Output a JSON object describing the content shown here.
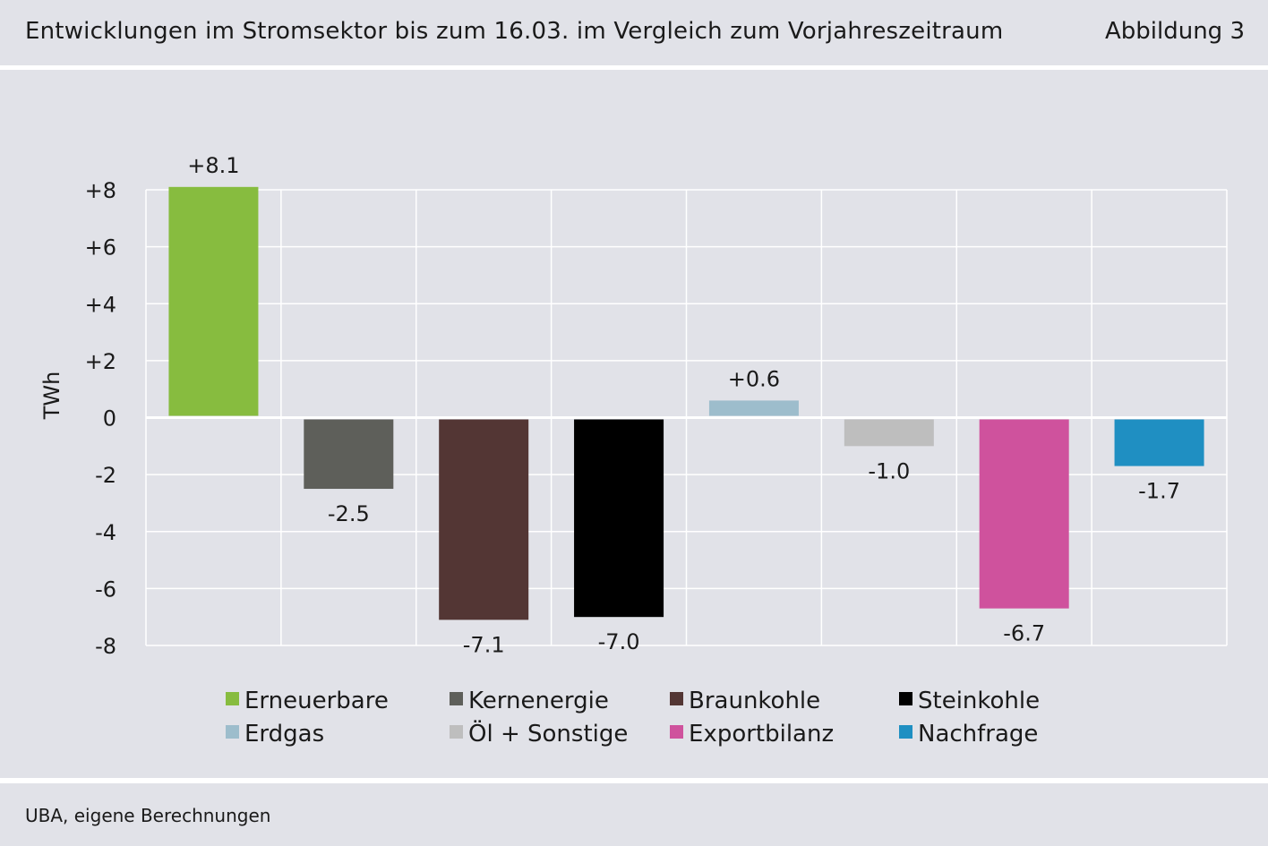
{
  "header": {
    "title": "Entwicklungen im Stromsektor bis zum 16.03. im Vergleich zum Vorjahreszeitraum",
    "figure_label": "Abbildung 3"
  },
  "footer": {
    "source": "UBA, eigene Berechnungen"
  },
  "chart_data": {
    "type": "bar",
    "title": "Entwicklungen im Stromsektor bis zum 16.03. im Vergleich zum Vorjahreszeitraum",
    "ylabel": "TWh",
    "xlabel": "",
    "ylim": [
      -8,
      8
    ],
    "yticks": [
      8,
      6,
      4,
      2,
      0,
      -2,
      -4,
      -6,
      -8
    ],
    "ytick_labels": [
      "+8",
      "+6",
      "+4",
      "+2",
      "0",
      "-2",
      "-4",
      "-6",
      "-8"
    ],
    "grid": true,
    "legend_position": "bottom",
    "categories": [
      "Erneuerbare",
      "Kernenergie",
      "Braunkohle",
      "Steinkohle",
      "Erdgas",
      "Öl + Sonstige",
      "Exportbilanz",
      "Nachfrage"
    ],
    "values": [
      8.1,
      -2.5,
      -7.1,
      -7.0,
      0.6,
      -1.0,
      -6.7,
      -1.7
    ],
    "data_labels": [
      "+8.1",
      "-2.5",
      "-7.1",
      "-7.0",
      "+0.6",
      "-1.0",
      "-6.7",
      "-1.7"
    ],
    "colors": [
      "#87bc3f",
      "#5e5f5a",
      "#533634",
      "#000000",
      "#9dbdcc",
      "#bebebe",
      "#cf529d",
      "#1f8fc2"
    ]
  }
}
